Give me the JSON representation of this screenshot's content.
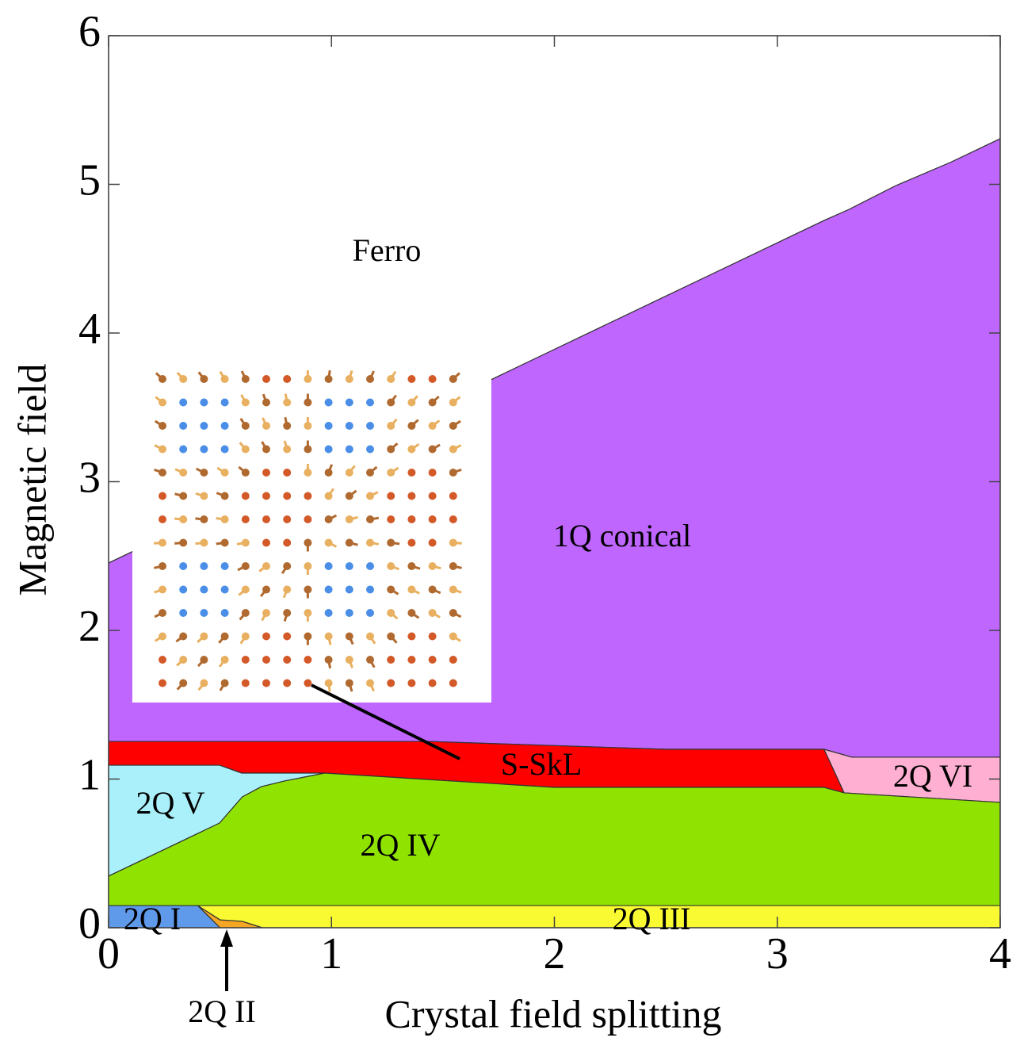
{
  "chart_data": {
    "type": "phase-diagram",
    "x_label": "Crystal field splitting",
    "y_label": "Magnetic field",
    "xlim": [
      0,
      4
    ],
    "ylim": [
      0,
      6
    ],
    "xticks": [
      0,
      1,
      2,
      3,
      4
    ],
    "yticks": [
      0,
      1,
      2,
      3,
      4,
      5,
      6
    ],
    "regions": [
      {
        "name": "Ferro",
        "color": "#ffffff",
        "x": [
          0,
          4,
          4,
          3.78,
          3.53,
          3.32,
          3.21,
          2.0,
          0
        ],
        "y": [
          6,
          6,
          5.307,
          5.15,
          4.99,
          4.83,
          4.757,
          3.89,
          2.453
        ]
      },
      {
        "name": "1Q conical",
        "color": "#bf66ff",
        "x": [
          0,
          2.0,
          3.21,
          3.32,
          3.53,
          3.78,
          4,
          4,
          3.335,
          3.21,
          2.5,
          1.433,
          0
        ],
        "y": [
          2.453,
          3.89,
          4.757,
          4.83,
          4.99,
          5.15,
          5.307,
          1.147,
          1.147,
          1.2,
          1.2,
          1.253,
          1.253
        ]
      },
      {
        "name": "S-SkL",
        "color": "#ff0000",
        "x": [
          0,
          1.433,
          2.5,
          3.21,
          3.3,
          3.21,
          2.0,
          0.97,
          0.597,
          0.498,
          0
        ],
        "y": [
          1.253,
          1.253,
          1.2,
          1.2,
          0.907,
          0.944,
          0.944,
          1.04,
          1.04,
          1.093,
          1.093
        ]
      },
      {
        "name": "2Q VI",
        "color": "#ffafd2",
        "x": [
          3.21,
          3.335,
          4,
          4,
          3.3
        ],
        "y": [
          1.2,
          1.147,
          1.147,
          0.843,
          0.907
        ]
      },
      {
        "name": "2Q V",
        "color": "#aaf0fa",
        "x": [
          0,
          0.498,
          0.597,
          0.97,
          0.79,
          0.686,
          0.6,
          0.498,
          0
        ],
        "y": [
          1.093,
          1.093,
          1.04,
          1.04,
          0.987,
          0.949,
          0.88,
          0.704,
          0.347
        ]
      },
      {
        "name": "2Q IV",
        "color": "#90e300",
        "x": [
          0,
          0.498,
          0.6,
          0.686,
          0.79,
          0.97,
          2.0,
          3.21,
          3.3,
          4,
          4,
          0
        ],
        "y": [
          0.347,
          0.704,
          0.88,
          0.949,
          0.987,
          1.04,
          0.944,
          0.944,
          0.907,
          0.843,
          0.149,
          0.149
        ]
      },
      {
        "name": "2Q I",
        "color": "#5f99ea",
        "x": [
          0,
          0,
          0.4,
          0.5
        ],
        "y": [
          0,
          0.149,
          0.149,
          0
        ]
      },
      {
        "name": "2Q II",
        "color": "#f5a623",
        "x": [
          0.4,
          0.5,
          0.6,
          0.69,
          0.5
        ],
        "y": [
          0.149,
          0.053,
          0.043,
          0,
          0
        ]
      },
      {
        "name": "2Q III",
        "color": "#fafa32",
        "x": [
          0.4,
          4,
          4,
          0.69,
          0.6,
          0.5
        ],
        "y": [
          0.149,
          0.149,
          0,
          0,
          0.043,
          0.053
        ]
      }
    ]
  }
}
